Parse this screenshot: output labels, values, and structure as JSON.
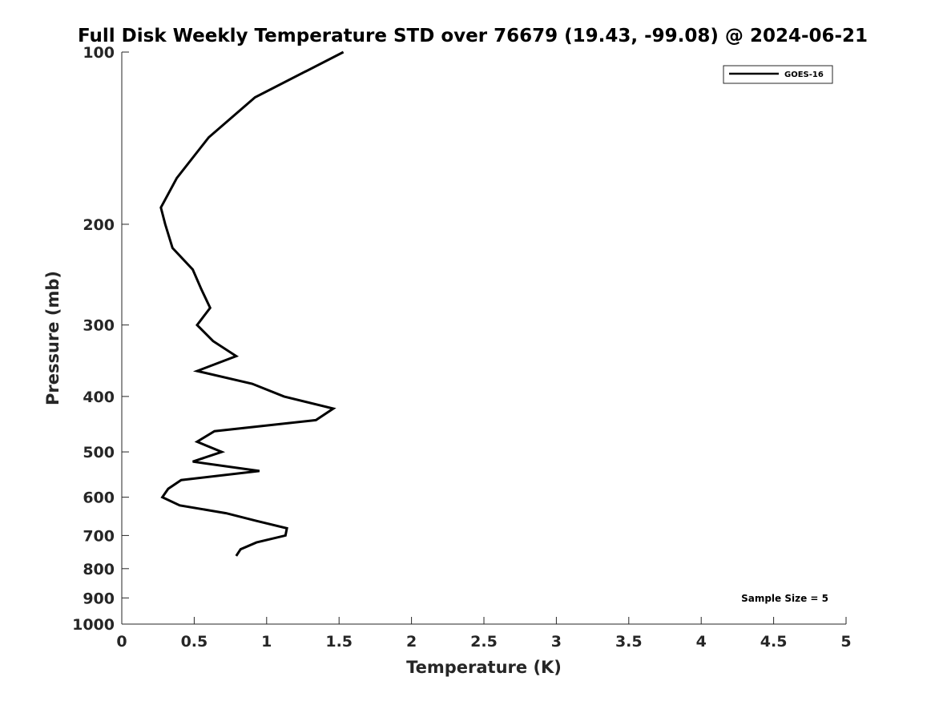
{
  "chart_data": {
    "type": "line",
    "title": "Full Disk Weekly Temperature STD over 76679 (19.43, -99.08) @ 2024-06-21",
    "xlabel": "Temperature (K)",
    "ylabel": "Pressure (mb)",
    "xlim": [
      0,
      5
    ],
    "ylim": [
      100,
      1000
    ],
    "y_scale": "log",
    "y_reversed": true,
    "x_ticks": [
      "0",
      "0.5",
      "1",
      "1.5",
      "2",
      "2.5",
      "3",
      "3.5",
      "4",
      "4.5",
      "5"
    ],
    "y_ticks": [
      {
        "value": 100,
        "label": "100"
      },
      {
        "value": 200,
        "label": "200"
      },
      {
        "value": 300,
        "label": "300"
      },
      {
        "value": 400,
        "label": "400"
      },
      {
        "value": 500,
        "label": "500"
      },
      {
        "value": 600,
        "label": "600"
      },
      {
        "value": 700,
        "label": "700"
      },
      {
        "value": 800,
        "label": "800"
      },
      {
        "value": 900,
        "label": "900"
      },
      {
        "value": 1000,
        "label": "1000"
      }
    ],
    "grid": false,
    "legend_position": "top-right",
    "series": [
      {
        "name": "GOES-16",
        "color": "#000000",
        "points": [
          {
            "x": 1.53,
            "p": 100
          },
          {
            "x": 0.92,
            "p": 120
          },
          {
            "x": 0.6,
            "p": 141
          },
          {
            "x": 0.38,
            "p": 166
          },
          {
            "x": 0.27,
            "p": 187
          },
          {
            "x": 0.3,
            "p": 200
          },
          {
            "x": 0.35,
            "p": 220
          },
          {
            "x": 0.49,
            "p": 240
          },
          {
            "x": 0.55,
            "p": 260
          },
          {
            "x": 0.61,
            "p": 280
          },
          {
            "x": 0.52,
            "p": 300
          },
          {
            "x": 0.63,
            "p": 320
          },
          {
            "x": 0.79,
            "p": 340
          },
          {
            "x": 0.52,
            "p": 361
          },
          {
            "x": 0.9,
            "p": 380
          },
          {
            "x": 1.12,
            "p": 400
          },
          {
            "x": 1.46,
            "p": 420
          },
          {
            "x": 1.34,
            "p": 440
          },
          {
            "x": 0.64,
            "p": 460
          },
          {
            "x": 0.52,
            "p": 480
          },
          {
            "x": 0.69,
            "p": 500
          },
          {
            "x": 0.49,
            "p": 520
          },
          {
            "x": 0.95,
            "p": 540
          },
          {
            "x": 0.41,
            "p": 560
          },
          {
            "x": 0.32,
            "p": 580
          },
          {
            "x": 0.28,
            "p": 600
          },
          {
            "x": 0.4,
            "p": 620
          },
          {
            "x": 0.72,
            "p": 640
          },
          {
            "x": 0.93,
            "p": 660
          },
          {
            "x": 1.14,
            "p": 680
          },
          {
            "x": 1.13,
            "p": 700
          },
          {
            "x": 0.93,
            "p": 720
          },
          {
            "x": 0.82,
            "p": 740
          },
          {
            "x": 0.79,
            "p": 760
          }
        ]
      }
    ],
    "annotation": "Sample Size = 5"
  }
}
